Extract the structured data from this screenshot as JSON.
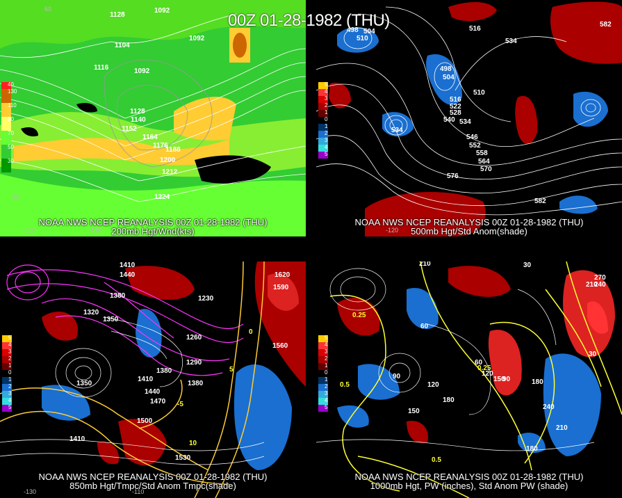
{
  "header": {
    "main_title": "00Z 01-28-1982 (THU)"
  },
  "panels": {
    "p1": {
      "line1": "NOAA NWS NCEP REANALYSIS 00Z 01-28-1982 (THU)",
      "line2": "200mb Hgt/Wnd(kts)",
      "legend": [
        "40",
        "130",
        "110",
        "90",
        "70",
        "50",
        "30"
      ],
      "legend_colors": [
        "#ff2020",
        "#cc6600",
        "#ffcc33",
        "#ffff66",
        "#66ff33",
        "#33cc33",
        "#009900"
      ],
      "axis": [
        "60",
        "-130",
        "-120",
        "20"
      ],
      "labels": [
        "1128",
        "1092",
        "1104",
        "1092",
        "1116",
        "1092",
        "1128",
        "1140",
        "1152",
        "1164",
        "1176",
        "1188",
        "1200",
        "1212",
        "1224"
      ]
    },
    "p2": {
      "line1": "NOAA NWS NCEP REANALYSIS 00Z 01-28-1982 (THU)",
      "line2": "500mb Hgt/Std Anom(shade)",
      "legend": [
        "5",
        "4",
        "3",
        "2",
        "1",
        "0",
        "1",
        "2",
        "3",
        "4",
        "5"
      ],
      "legend_colors": [
        "#ff0000",
        "#dd0000",
        "#bb0000",
        "#990000",
        "#660000",
        "#000000",
        "#003366",
        "#0055aa",
        "#1177cc",
        "#33aadd",
        "#9900cc"
      ],
      "axis": [
        "-120"
      ],
      "labels": [
        "498",
        "504",
        "510",
        "498",
        "504",
        "510",
        "516",
        "522",
        "528",
        "534",
        "540",
        "546",
        "552",
        "558",
        "564",
        "570",
        "576",
        "582",
        "534",
        "534",
        "582",
        "516"
      ]
    },
    "p3": {
      "line1": "NOAA NWS NCEP REANALYSIS 00Z 01-28-1982 (THU)",
      "line2": "850mb Hgt/Tmpc/Std Anom Tmpc(shade)",
      "legend": [
        "5",
        "4",
        "3",
        "2",
        "1",
        "0",
        "1",
        "2",
        "3",
        "4",
        "5"
      ],
      "axis": [
        "-130",
        "-110"
      ],
      "labels": [
        "1440",
        "1410",
        "1380",
        "1350",
        "1320",
        "1290",
        "1260",
        "1230",
        "1620",
        "1590",
        "1560",
        "1530",
        "1500",
        "1470",
        "1440",
        "1410",
        "1380",
        "1350",
        "1380",
        "1410"
      ],
      "yellow_labels": [
        "-5",
        "10",
        "5",
        "0"
      ]
    },
    "p4": {
      "line1": "NOAA NWS NCEP REANALYSIS 00Z 01-28-1982 (THU)",
      "line2": "1000mb Hgt, PW (inches), Std Anom PW (shade)",
      "legend": [
        "5",
        "4",
        "3",
        "2",
        "1",
        "0",
        "1",
        "2",
        "3",
        "4",
        "5"
      ],
      "labels": [
        "210",
        "30",
        "270",
        "240",
        "210",
        "180",
        "150",
        "120",
        "90",
        "60",
        "30",
        "180",
        "240",
        "210",
        "180",
        "150",
        "120",
        "90",
        "60"
      ],
      "yellow_labels": [
        "0.25",
        "0.5",
        "0.25",
        "0.5"
      ]
    }
  }
}
